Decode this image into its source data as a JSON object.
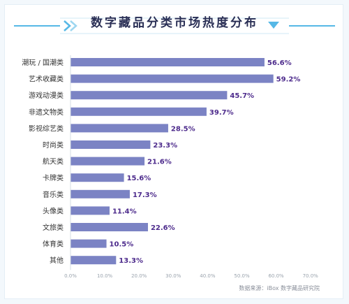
{
  "colors": {
    "bar": "#7b83c4",
    "label": "#4d2b8c",
    "accent": "#56b8e6",
    "title": "#2a2f55",
    "axis_text": "#9aa3ad"
  },
  "header": {
    "title": "数字藏品分类市场热度分布",
    "left_icon": "chevron-arrows-icon",
    "right_icon": "triangle-down-icon"
  },
  "footer": {
    "source": "数据来源：iBox 数字藏品研究院"
  },
  "chart_data": {
    "type": "bar",
    "orientation": "horizontal",
    "title": "数字藏品分类市场热度分布",
    "categories": [
      "潮玩 / 国潮类",
      "艺术收藏类",
      "游戏动漫类",
      "非遗文物类",
      "影视综艺类",
      "时尚类",
      "航天类",
      "卡牌类",
      "音乐类",
      "头像类",
      "文旅类",
      "体育类",
      "其他"
    ],
    "values": [
      56.6,
      59.2,
      45.7,
      39.7,
      28.5,
      23.3,
      21.6,
      15.6,
      17.3,
      11.4,
      22.6,
      10.5,
      13.3
    ],
    "value_labels": [
      "56.6%",
      "59.2%",
      "45.7%",
      "39.7%",
      "28.5%",
      "23.3%",
      "21.6%",
      "15.6%",
      "17.3%",
      "11.4%",
      "22.6%",
      "10.5%",
      "13.3%"
    ],
    "x_ticks": [
      "0.0%",
      "10.0%",
      "20.0%",
      "30.0%",
      "40.0%",
      "50.0%",
      "60.0%",
      "70.0%"
    ],
    "xlim": [
      0,
      70
    ],
    "grid": false,
    "legend": "none"
  }
}
